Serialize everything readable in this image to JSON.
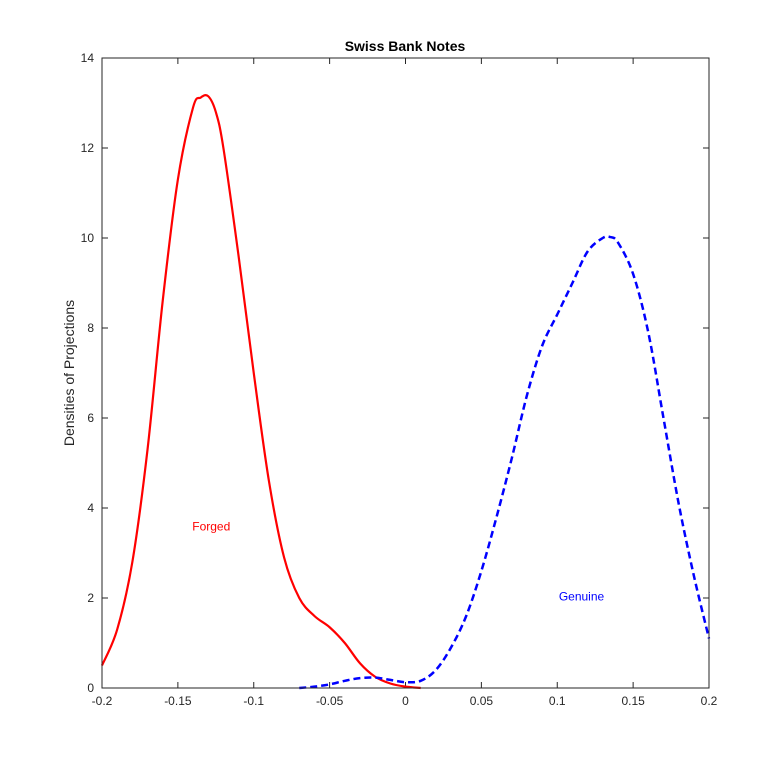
{
  "chart_data": {
    "type": "line",
    "title": "Swiss Bank Notes",
    "xlabel": "",
    "ylabel": "Densities of Projections",
    "xlim": [
      -0.2,
      0.2
    ],
    "ylim": [
      0,
      14
    ],
    "xticks": [
      "-0.2",
      "-0.15",
      "-0.1",
      "-0.05",
      "0",
      "0.05",
      "0.1",
      "0.15",
      "0.2"
    ],
    "yticks": [
      "0",
      "2",
      "4",
      "6",
      "8",
      "10",
      "12",
      "14"
    ],
    "grid": false,
    "series": [
      {
        "name": "Forged",
        "color": "#ff0000",
        "style": "solid",
        "x": [
          -0.2,
          -0.19,
          -0.18,
          -0.17,
          -0.16,
          -0.15,
          -0.14,
          -0.135,
          -0.13,
          -0.125,
          -0.12,
          -0.11,
          -0.1,
          -0.09,
          -0.08,
          -0.07,
          -0.06,
          -0.05,
          -0.04,
          -0.03,
          -0.02,
          -0.01,
          0.0,
          0.01
        ],
        "y": [
          0.5,
          1.3,
          2.8,
          5.3,
          8.6,
          11.3,
          12.9,
          13.12,
          13.15,
          12.8,
          12.0,
          9.6,
          7.0,
          4.6,
          2.9,
          2.0,
          1.6,
          1.35,
          1.0,
          0.55,
          0.25,
          0.1,
          0.03,
          0.0
        ]
      },
      {
        "name": "Genuine",
        "color": "#0000ff",
        "style": "dashed",
        "x": [
          -0.07,
          -0.06,
          -0.05,
          -0.04,
          -0.03,
          -0.02,
          -0.01,
          0.0,
          0.01,
          0.02,
          0.03,
          0.04,
          0.05,
          0.06,
          0.07,
          0.08,
          0.09,
          0.1,
          0.11,
          0.12,
          0.13,
          0.135,
          0.14,
          0.15,
          0.16,
          0.17,
          0.18,
          0.19,
          0.2
        ],
        "y": [
          0.0,
          0.03,
          0.08,
          0.16,
          0.22,
          0.23,
          0.18,
          0.13,
          0.16,
          0.4,
          0.9,
          1.6,
          2.6,
          3.8,
          5.1,
          6.5,
          7.6,
          8.3,
          9.0,
          9.7,
          10.0,
          10.02,
          9.9,
          9.2,
          7.9,
          6.0,
          4.1,
          2.5,
          1.1
        ]
      }
    ],
    "annotations": [
      {
        "text": "Forged",
        "x": -0.128,
        "y": 3.5,
        "color": "#ff0000"
      },
      {
        "text": "Genuine",
        "x": 0.116,
        "y": 1.95,
        "color": "#0000ff"
      }
    ]
  }
}
